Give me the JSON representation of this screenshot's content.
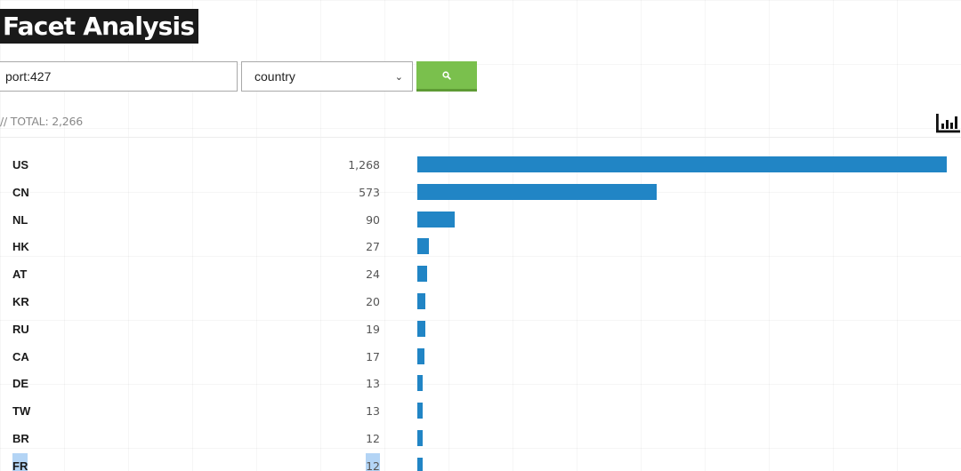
{
  "title": "Facet Analysis",
  "search": {
    "query": "port:427",
    "facet_selected": "country",
    "button_icon": "search-icon"
  },
  "total": {
    "label": "// TOTAL: 2,266"
  },
  "icons": {
    "chart": "bar-chart-icon"
  },
  "colors": {
    "bar": "#2185c5",
    "button": "#7ac04d",
    "title_bg": "#1a1a1a"
  },
  "facets": [
    {
      "code": "US",
      "count_label": "1,268",
      "value": 1268
    },
    {
      "code": "CN",
      "count_label": "573",
      "value": 573
    },
    {
      "code": "NL",
      "count_label": "90",
      "value": 90
    },
    {
      "code": "HK",
      "count_label": "27",
      "value": 27
    },
    {
      "code": "AT",
      "count_label": "24",
      "value": 24
    },
    {
      "code": "KR",
      "count_label": "20",
      "value": 20
    },
    {
      "code": "RU",
      "count_label": "19",
      "value": 19
    },
    {
      "code": "CA",
      "count_label": "17",
      "value": 17
    },
    {
      "code": "DE",
      "count_label": "13",
      "value": 13
    },
    {
      "code": "TW",
      "count_label": "13",
      "value": 13
    },
    {
      "code": "BR",
      "count_label": "12",
      "value": 12
    },
    {
      "code": "FR",
      "count_label": "12",
      "value": 12
    }
  ]
}
